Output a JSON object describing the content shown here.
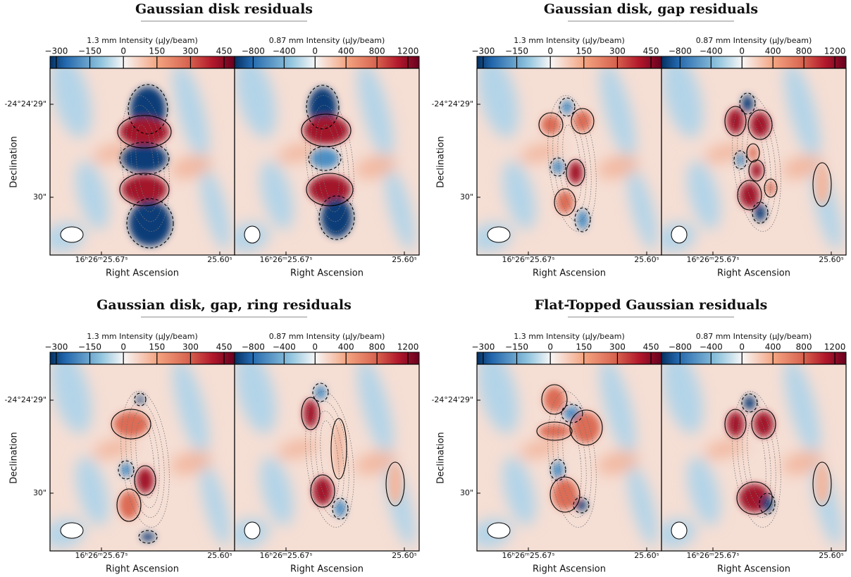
{
  "panels": [
    {
      "title": "Gaussian disk residuals"
    },
    {
      "title": "Gaussian disk, gap residuals"
    },
    {
      "title": "Gaussian disk, gap, ring residuals"
    },
    {
      "title": "Flat-Topped Gaussian residuals"
    }
  ],
  "colorbars": [
    {
      "label": "1.3 mm Intensity (μJy/beam)",
      "range": [
        -328,
        497
      ],
      "ticks": [
        {
          "value": -300,
          "label": "−300"
        },
        {
          "value": -150,
          "label": "−150"
        },
        0,
        150,
        300,
        450
      ]
    },
    {
      "label": "0.87 mm Intensity (μJy/beam)",
      "range": [
        -1040,
        1345
      ],
      "ticks": [
        {
          "value": -800,
          "label": "−800"
        },
        {
          "value": -400,
          "label": "−400"
        },
        0,
        400,
        800,
        1200
      ]
    }
  ],
  "y_axis": {
    "label": "Declination",
    "ticks": [
      "-24°24'29\"",
      "30\""
    ]
  },
  "x_axis": {
    "label": "Right Ascension",
    "ticks": [
      "16ʰ26ᵐ25.67ˢ",
      "25.60ˢ"
    ]
  }
}
